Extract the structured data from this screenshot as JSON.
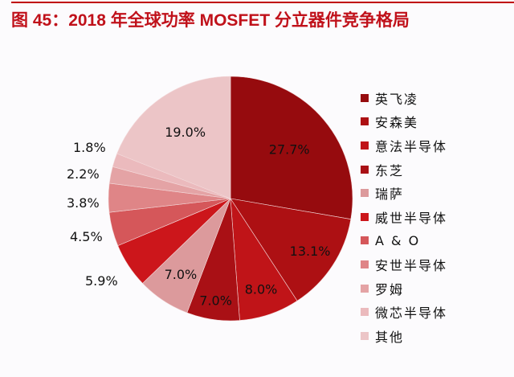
{
  "title": "图 45：2018 年全球功率 MOSFET 分立器件竞争格局",
  "chart_data": {
    "type": "pie",
    "title": "图 45：2018 年全球功率 MOSFET 分立器件竞争格局",
    "start_angle": "12 o'clock, clockwise",
    "legend_position": "right",
    "categories": [
      "英飞凌",
      "安森美",
      "意法半导体",
      "东芝",
      "瑞萨",
      "威世半导体",
      "A & O",
      "安世半导体",
      "罗姆",
      "微芯半导体",
      "其他"
    ],
    "values": [
      27.7,
      13.1,
      8.0,
      7.0,
      7.0,
      5.9,
      4.5,
      3.8,
      2.2,
      1.8,
      19.0
    ],
    "labels": [
      "27.7%",
      "13.1%",
      "8.0%",
      "7.0%",
      "7.0%",
      "5.9%",
      "4.5%",
      "3.8%",
      "2.2%",
      "1.8%",
      "19.0%"
    ],
    "colors": [
      "#960b0e",
      "#ad1013",
      "#c01418",
      "#a91015",
      "#dc9a9c",
      "#cc161b",
      "#d5575a",
      "#df8587",
      "#e4a3a5",
      "#ebbabd",
      "#ecc5c7"
    ]
  },
  "legend": {
    "items": [
      {
        "label": "英飞凌",
        "color": "#960b0e"
      },
      {
        "label": "安森美",
        "color": "#ad1013"
      },
      {
        "label": "意法半导体",
        "color": "#c01418"
      },
      {
        "label": "东芝",
        "color": "#a91015"
      },
      {
        "label": "瑞萨",
        "color": "#dc9a9c"
      },
      {
        "label": "威世半导体",
        "color": "#cc161b"
      },
      {
        "label": "A & O",
        "color": "#d5575a"
      },
      {
        "label": "安世半导体",
        "color": "#df8587"
      },
      {
        "label": "罗姆",
        "color": "#e4a3a5"
      },
      {
        "label": "微芯半导体",
        "color": "#ebbabd"
      },
      {
        "label": "其他",
        "color": "#ecc5c7"
      }
    ]
  }
}
